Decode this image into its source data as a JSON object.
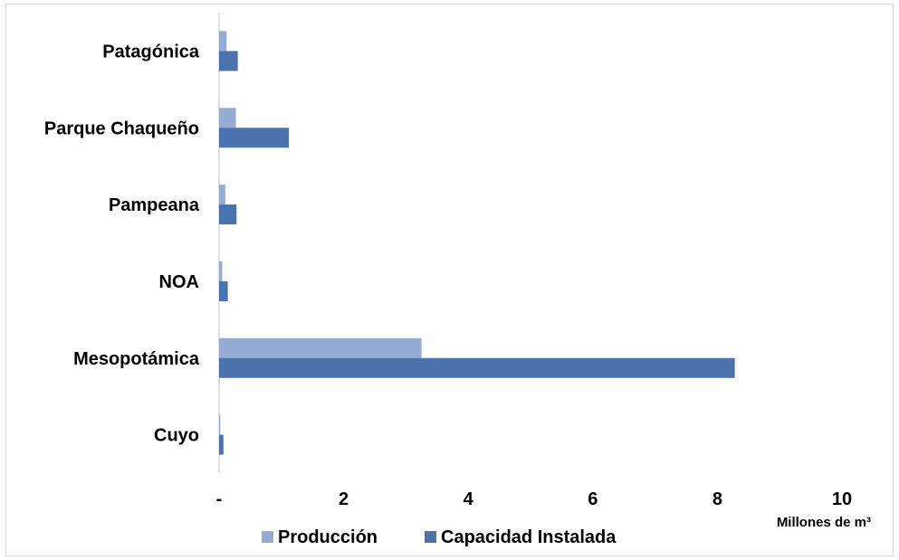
{
  "chart_data": {
    "type": "bar",
    "orientation": "horizontal",
    "categories": [
      "Patagónica",
      "Parque Chaqueño",
      "Pampeana",
      "NOA",
      "Mesopotámica",
      "Cuyo"
    ],
    "series": [
      {
        "name": "Producción",
        "color": "#95abd3",
        "values": [
          0.12,
          0.27,
          0.1,
          0.05,
          3.25,
          0.02
        ]
      },
      {
        "name": "Capacidad Instalada",
        "color": "#4a72ad",
        "values": [
          0.3,
          1.12,
          0.28,
          0.14,
          8.28,
          0.07
        ]
      }
    ],
    "xlim": [
      0,
      10
    ],
    "xticks": [
      {
        "value": 0,
        "label": "-"
      },
      {
        "value": 2,
        "label": "2"
      },
      {
        "value": 4,
        "label": "4"
      },
      {
        "value": 6,
        "label": "6"
      },
      {
        "value": 8,
        "label": "8"
      },
      {
        "value": 10,
        "label": "10"
      }
    ],
    "xlabel": "Millones de m³",
    "grid": false,
    "legend_position": "bottom"
  }
}
